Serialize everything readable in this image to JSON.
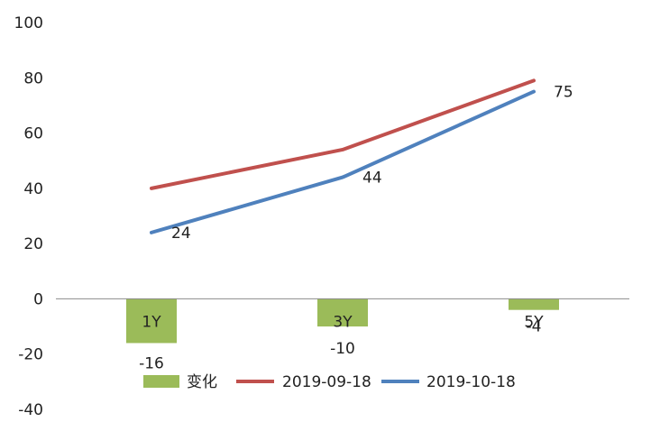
{
  "chart_data": {
    "type": "bar+line",
    "categories": [
      "1Y",
      "3Y",
      "5Y"
    ],
    "ylim": [
      -40,
      100
    ],
    "yticks": [
      -40,
      -20,
      0,
      20,
      40,
      60,
      80,
      100
    ],
    "grid": false,
    "legend_position": "bottom",
    "bar_series": {
      "name": "变化",
      "color": "#9BBB59",
      "values": [
        -16,
        -10,
        -4
      ],
      "labels": [
        "-16",
        "-10",
        "-4"
      ]
    },
    "line_series": [
      {
        "name": "2019-09-18",
        "color": "#C0504D",
        "values": [
          40,
          54,
          79
        ],
        "labels": []
      },
      {
        "name": "2019-10-18",
        "color": "#4F81BD",
        "values": [
          24,
          44,
          75
        ],
        "labels": [
          "24",
          "44",
          "75"
        ]
      }
    ]
  }
}
